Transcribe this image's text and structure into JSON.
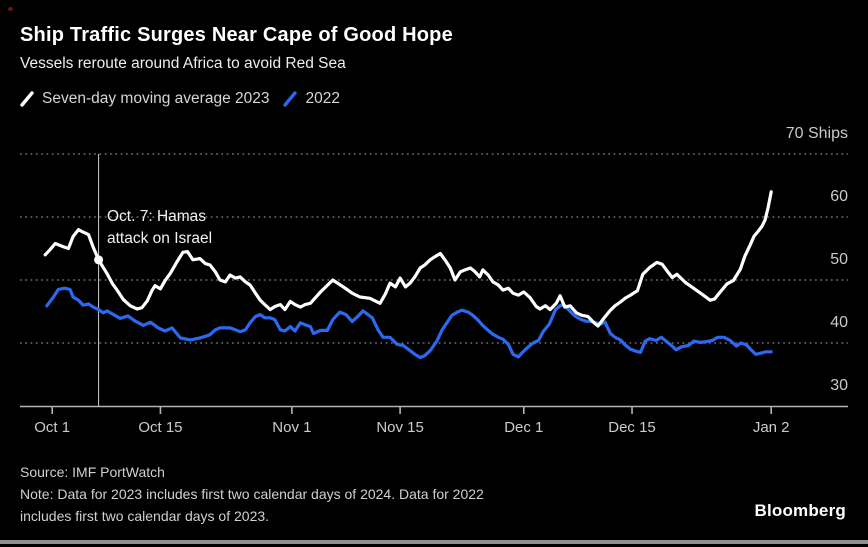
{
  "window": {
    "background": "#000000",
    "bottom_bar_color": "#8f8f8f",
    "record_dot_color": "#7f1d1d"
  },
  "header": {
    "title": "Ship Traffic Surges Near Cape of Good Hope",
    "subtitle": "Vessels reroute around Africa to avoid Red Sea"
  },
  "legend": {
    "items": [
      {
        "label": "Seven-day moving average 2023",
        "color": "#ffffff"
      },
      {
        "label": "2022",
        "color": "#2b6af0"
      }
    ]
  },
  "annotation": {
    "line1": "Oct. 7: Hamas",
    "line2": "attack on Israel"
  },
  "footer": {
    "source": "Source: IMF PortWatch",
    "note1": "Note: Data for 2023 includes first two calendar days of 2024. Data for 2022",
    "note2": "includes first two calendar days of 2023.",
    "brand": "Bloomberg"
  },
  "chart_data": {
    "type": "line",
    "title": "Ship Traffic Surges Near Cape of Good Hope",
    "subtitle": "Vessels reroute around Africa to avoid Red Sea",
    "x_unit": "days since Oct 1 (2023 series; 2022 series aligned by date)",
    "grid": "dotted horizontal",
    "legend_position": "top-left",
    "x_axis": {
      "ticks": [
        {
          "label": "Oct 1",
          "day": 0
        },
        {
          "label": "Oct 15",
          "day": 14
        },
        {
          "label": "Nov 1",
          "day": 31
        },
        {
          "label": "Nov 15",
          "day": 45
        },
        {
          "label": "Dec 1",
          "day": 61
        },
        {
          "label": "Dec 15",
          "day": 75
        },
        {
          "label": "Jan 2",
          "day": 93
        }
      ]
    },
    "y_axis": {
      "unit": "Ships",
      "range": [
        30,
        70
      ],
      "gridline_values": [
        70,
        60,
        50,
        40
      ],
      "ticks": [
        {
          "label": "70 Ships",
          "value": 70
        },
        {
          "label": "60",
          "value": 60
        },
        {
          "label": "50",
          "value": 50
        },
        {
          "label": "40",
          "value": 40
        },
        {
          "label": "30",
          "value": 30
        }
      ]
    },
    "annotation": {
      "text": "Oct. 7: Hamas attack on Israel",
      "day": 6,
      "value": 53.2,
      "marker": "white dot on 2023 line, vertical line full height"
    },
    "series": [
      {
        "name": "Seven-day moving average 2023",
        "color": "#ffffff",
        "points": [
          [
            -0.9,
            54.0
          ],
          [
            -0.3,
            54.8
          ],
          [
            0.4,
            55.8
          ],
          [
            1.4,
            55.3
          ],
          [
            2.1,
            55.0
          ],
          [
            2.7,
            56.9
          ],
          [
            3.4,
            58.0
          ],
          [
            4.0,
            57.6
          ],
          [
            4.7,
            57.2
          ],
          [
            5.3,
            55.2
          ],
          [
            6.0,
            53.2
          ],
          [
            6.6,
            52.0
          ],
          [
            7.1,
            51.0
          ],
          [
            7.8,
            49.4
          ],
          [
            8.4,
            48.4
          ],
          [
            9.2,
            46.9
          ],
          [
            10.1,
            45.9
          ],
          [
            11.0,
            45.4
          ],
          [
            11.6,
            45.6
          ],
          [
            12.3,
            46.7
          ],
          [
            12.9,
            48.3
          ],
          [
            13.3,
            49.1
          ],
          [
            14.0,
            48.6
          ],
          [
            14.6,
            49.9
          ],
          [
            15.3,
            51.1
          ],
          [
            16.2,
            53.0
          ],
          [
            16.9,
            54.4
          ],
          [
            17.5,
            54.5
          ],
          [
            18.2,
            53.2
          ],
          [
            19.1,
            53.4
          ],
          [
            19.8,
            52.6
          ],
          [
            20.4,
            52.4
          ],
          [
            21.1,
            51.3
          ],
          [
            21.7,
            50.0
          ],
          [
            22.4,
            49.7
          ],
          [
            23.0,
            50.8
          ],
          [
            23.7,
            50.3
          ],
          [
            24.3,
            50.5
          ],
          [
            25.0,
            49.7
          ],
          [
            25.6,
            49.2
          ],
          [
            26.3,
            47.9
          ],
          [
            26.9,
            46.8
          ],
          [
            27.5,
            46.1
          ],
          [
            28.2,
            45.3
          ],
          [
            28.8,
            45.8
          ],
          [
            29.5,
            46.1
          ],
          [
            30.1,
            45.3
          ],
          [
            30.8,
            46.6
          ],
          [
            31.4,
            46.1
          ],
          [
            32.1,
            45.7
          ],
          [
            32.7,
            46.1
          ],
          [
            33.4,
            46.3
          ],
          [
            34.7,
            48.1
          ],
          [
            36.3,
            50.0
          ],
          [
            37.9,
            48.7
          ],
          [
            38.8,
            47.9
          ],
          [
            39.8,
            47.3
          ],
          [
            41.1,
            47.1
          ],
          [
            42.4,
            46.3
          ],
          [
            43.1,
            47.8
          ],
          [
            43.7,
            49.5
          ],
          [
            44.4,
            48.9
          ],
          [
            45.0,
            50.3
          ],
          [
            45.7,
            48.9
          ],
          [
            46.3,
            49.5
          ],
          [
            46.9,
            50.5
          ],
          [
            47.6,
            51.9
          ],
          [
            48.2,
            52.4
          ],
          [
            48.9,
            53.2
          ],
          [
            49.5,
            53.7
          ],
          [
            50.2,
            54.2
          ],
          [
            50.8,
            53.2
          ],
          [
            51.5,
            51.9
          ],
          [
            52.1,
            50.0
          ],
          [
            52.8,
            51.3
          ],
          [
            53.4,
            51.6
          ],
          [
            54.1,
            51.9
          ],
          [
            54.7,
            51.3
          ],
          [
            55.3,
            50.5
          ],
          [
            55.7,
            51.6
          ],
          [
            56.4,
            50.8
          ],
          [
            57.0,
            49.7
          ],
          [
            57.7,
            49.2
          ],
          [
            58.3,
            48.4
          ],
          [
            59.0,
            48.7
          ],
          [
            59.6,
            47.9
          ],
          [
            60.3,
            47.6
          ],
          [
            61.0,
            48.1
          ],
          [
            61.8,
            47.2
          ],
          [
            62.6,
            45.8
          ],
          [
            63.1,
            45.4
          ],
          [
            63.8,
            45.9
          ],
          [
            64.4,
            45.3
          ],
          [
            65.2,
            46.3
          ],
          [
            65.7,
            47.5
          ],
          [
            66.3,
            45.7
          ],
          [
            67.0,
            45.9
          ],
          [
            67.8,
            44.8
          ],
          [
            68.5,
            44.4
          ],
          [
            69.3,
            44.2
          ],
          [
            70.0,
            43.3
          ],
          [
            70.6,
            42.7
          ],
          [
            71.4,
            44.0
          ],
          [
            72.2,
            45.2
          ],
          [
            72.8,
            45.9
          ],
          [
            73.5,
            46.5
          ],
          [
            74.1,
            47.1
          ],
          [
            74.8,
            47.6
          ],
          [
            75.7,
            48.3
          ],
          [
            76.4,
            50.9
          ],
          [
            77.3,
            52.0
          ],
          [
            78.2,
            52.8
          ],
          [
            78.9,
            52.5
          ],
          [
            79.5,
            51.5
          ],
          [
            80.2,
            50.4
          ],
          [
            80.8,
            50.9
          ],
          [
            81.9,
            49.6
          ],
          [
            82.5,
            49.1
          ],
          [
            83.4,
            48.3
          ],
          [
            84.2,
            47.6
          ],
          [
            85.1,
            46.8
          ],
          [
            85.7,
            47.0
          ],
          [
            86.4,
            48.1
          ],
          [
            87.3,
            49.4
          ],
          [
            88.1,
            49.9
          ],
          [
            89.0,
            51.7
          ],
          [
            89.6,
            53.8
          ],
          [
            90.3,
            55.6
          ],
          [
            90.8,
            57.0
          ],
          [
            91.3,
            57.7
          ],
          [
            91.8,
            58.5
          ],
          [
            92.2,
            59.5
          ],
          [
            92.6,
            61.5
          ],
          [
            93.0,
            64.0
          ]
        ]
      },
      {
        "name": "2022",
        "color": "#2b6af0",
        "points": [
          [
            -0.7,
            45.9
          ],
          [
            0.1,
            47.2
          ],
          [
            0.8,
            48.5
          ],
          [
            1.6,
            48.7
          ],
          [
            2.3,
            48.5
          ],
          [
            2.7,
            47.3
          ],
          [
            3.4,
            46.8
          ],
          [
            4.0,
            46.0
          ],
          [
            4.7,
            46.2
          ],
          [
            5.3,
            45.7
          ],
          [
            6.0,
            45.3
          ],
          [
            6.6,
            44.8
          ],
          [
            7.1,
            45.1
          ],
          [
            7.8,
            44.6
          ],
          [
            8.8,
            43.9
          ],
          [
            9.8,
            44.3
          ],
          [
            10.7,
            43.5
          ],
          [
            11.8,
            42.8
          ],
          [
            12.7,
            43.3
          ],
          [
            13.7,
            42.4
          ],
          [
            14.6,
            41.9
          ],
          [
            15.5,
            42.4
          ],
          [
            16.6,
            40.8
          ],
          [
            17.9,
            40.5
          ],
          [
            19.1,
            40.8
          ],
          [
            20.4,
            41.3
          ],
          [
            21.1,
            42.1
          ],
          [
            21.7,
            42.4
          ],
          [
            23.0,
            42.4
          ],
          [
            23.7,
            42.1
          ],
          [
            24.3,
            41.8
          ],
          [
            25.0,
            42.1
          ],
          [
            25.6,
            43.2
          ],
          [
            26.3,
            44.2
          ],
          [
            26.9,
            44.5
          ],
          [
            27.5,
            44.0
          ],
          [
            28.2,
            44.0
          ],
          [
            28.8,
            43.7
          ],
          [
            29.5,
            42.1
          ],
          [
            30.1,
            41.9
          ],
          [
            30.8,
            42.6
          ],
          [
            31.4,
            41.9
          ],
          [
            32.1,
            43.2
          ],
          [
            32.7,
            42.9
          ],
          [
            33.4,
            42.6
          ],
          [
            33.8,
            41.5
          ],
          [
            34.7,
            42.0
          ],
          [
            35.6,
            42.0
          ],
          [
            36.3,
            43.7
          ],
          [
            37.2,
            44.9
          ],
          [
            38.0,
            44.5
          ],
          [
            38.8,
            43.4
          ],
          [
            39.6,
            44.3
          ],
          [
            40.2,
            45.1
          ],
          [
            41.4,
            44.0
          ],
          [
            42.2,
            42.0
          ],
          [
            42.8,
            40.9
          ],
          [
            43.7,
            40.9
          ],
          [
            44.6,
            39.8
          ],
          [
            45.4,
            39.6
          ],
          [
            46.3,
            38.8
          ],
          [
            46.9,
            38.2
          ],
          [
            47.6,
            37.7
          ],
          [
            48.2,
            38.0
          ],
          [
            48.9,
            38.8
          ],
          [
            49.8,
            40.4
          ],
          [
            50.4,
            42.0
          ],
          [
            51.1,
            43.3
          ],
          [
            51.7,
            44.4
          ],
          [
            52.4,
            44.9
          ],
          [
            53.0,
            45.2
          ],
          [
            53.8,
            44.9
          ],
          [
            54.4,
            44.4
          ],
          [
            55.1,
            43.6
          ],
          [
            55.7,
            42.8
          ],
          [
            56.4,
            42.0
          ],
          [
            57.0,
            41.4
          ],
          [
            57.7,
            40.9
          ],
          [
            58.3,
            40.6
          ],
          [
            59.0,
            39.8
          ],
          [
            59.6,
            38.2
          ],
          [
            60.3,
            37.8
          ],
          [
            60.9,
            38.6
          ],
          [
            61.6,
            39.4
          ],
          [
            62.2,
            40.0
          ],
          [
            62.9,
            40.4
          ],
          [
            63.5,
            41.8
          ],
          [
            64.3,
            43.0
          ],
          [
            65.1,
            45.3
          ],
          [
            65.7,
            45.9
          ],
          [
            66.2,
            46.1
          ],
          [
            67.0,
            45.0
          ],
          [
            67.6,
            44.3
          ],
          [
            68.3,
            43.8
          ],
          [
            68.9,
            43.5
          ],
          [
            69.6,
            43.4
          ],
          [
            70.2,
            43.3
          ],
          [
            70.9,
            43.0
          ],
          [
            71.5,
            43.3
          ],
          [
            72.2,
            41.5
          ],
          [
            72.8,
            40.9
          ],
          [
            73.5,
            40.5
          ],
          [
            74.1,
            39.7
          ],
          [
            74.8,
            39.0
          ],
          [
            75.5,
            38.7
          ],
          [
            76.1,
            38.5
          ],
          [
            76.7,
            40.3
          ],
          [
            77.3,
            40.7
          ],
          [
            78.1,
            40.4
          ],
          [
            78.8,
            40.9
          ],
          [
            79.4,
            40.3
          ],
          [
            80.1,
            39.6
          ],
          [
            80.7,
            38.9
          ],
          [
            81.4,
            39.4
          ],
          [
            82.3,
            39.6
          ],
          [
            83.0,
            40.3
          ],
          [
            83.8,
            40.1
          ],
          [
            84.6,
            40.2
          ],
          [
            85.4,
            40.4
          ],
          [
            86.1,
            40.9
          ],
          [
            86.9,
            40.9
          ],
          [
            87.7,
            40.4
          ],
          [
            88.5,
            39.5
          ],
          [
            89.1,
            40.0
          ],
          [
            89.8,
            39.7
          ],
          [
            90.4,
            38.9
          ],
          [
            91.0,
            38.2
          ],
          [
            91.7,
            38.4
          ],
          [
            92.3,
            38.6
          ],
          [
            93.0,
            38.6
          ]
        ]
      }
    ]
  }
}
